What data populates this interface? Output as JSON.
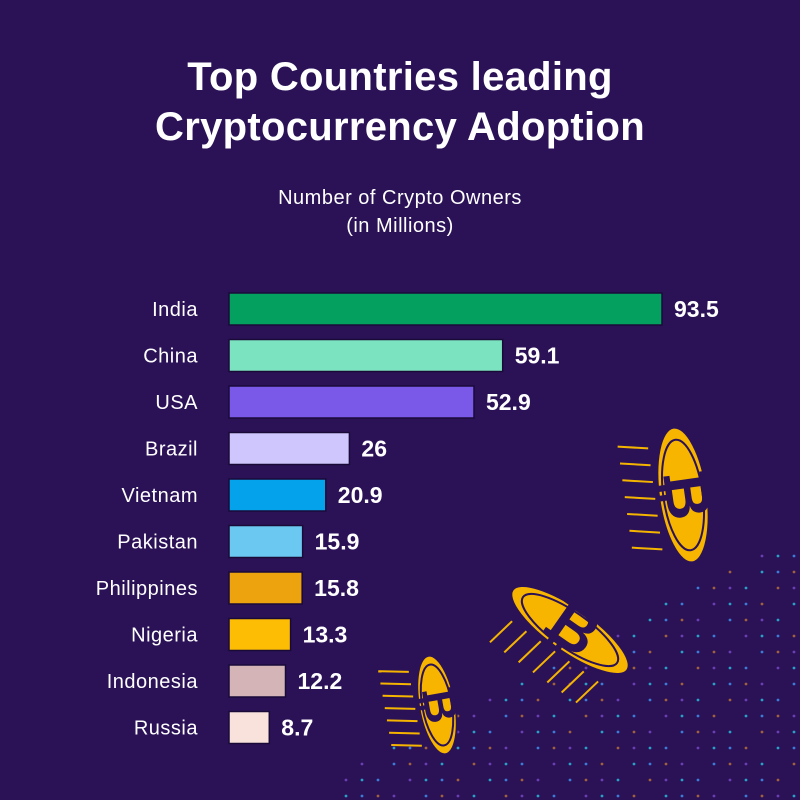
{
  "chart_data": {
    "type": "bar",
    "orientation": "horizontal",
    "title_line1": "Top Countries leading",
    "title_line2": "Cryptocurrency Adoption",
    "subtitle_line1": "Number of Crypto Owners",
    "subtitle_line2": "(in Millions)",
    "categories": [
      "India",
      "China",
      "USA",
      "Brazil",
      "Vietnam",
      "Pakistan",
      "Philippines",
      "Nigeria",
      "Indonesia",
      "Russia"
    ],
    "values": [
      93.5,
      59.1,
      52.9,
      26,
      20.9,
      15.9,
      15.8,
      13.3,
      12.2,
      8.7
    ],
    "value_labels": [
      "93.5",
      "59.1",
      "52.9",
      "26",
      "20.9",
      "15.9",
      "15.8",
      "13.3",
      "12.2",
      "8.7"
    ],
    "colors": [
      "#03a05f",
      "#7ce3c0",
      "#7b59e8",
      "#cec6fc",
      "#03a2ea",
      "#6bc8f1",
      "#eda30e",
      "#fdbd04",
      "#d4b4b6",
      "#f9e2dc"
    ],
    "xlim": [
      0,
      93.5
    ],
    "grid": false,
    "legend": "none"
  }
}
